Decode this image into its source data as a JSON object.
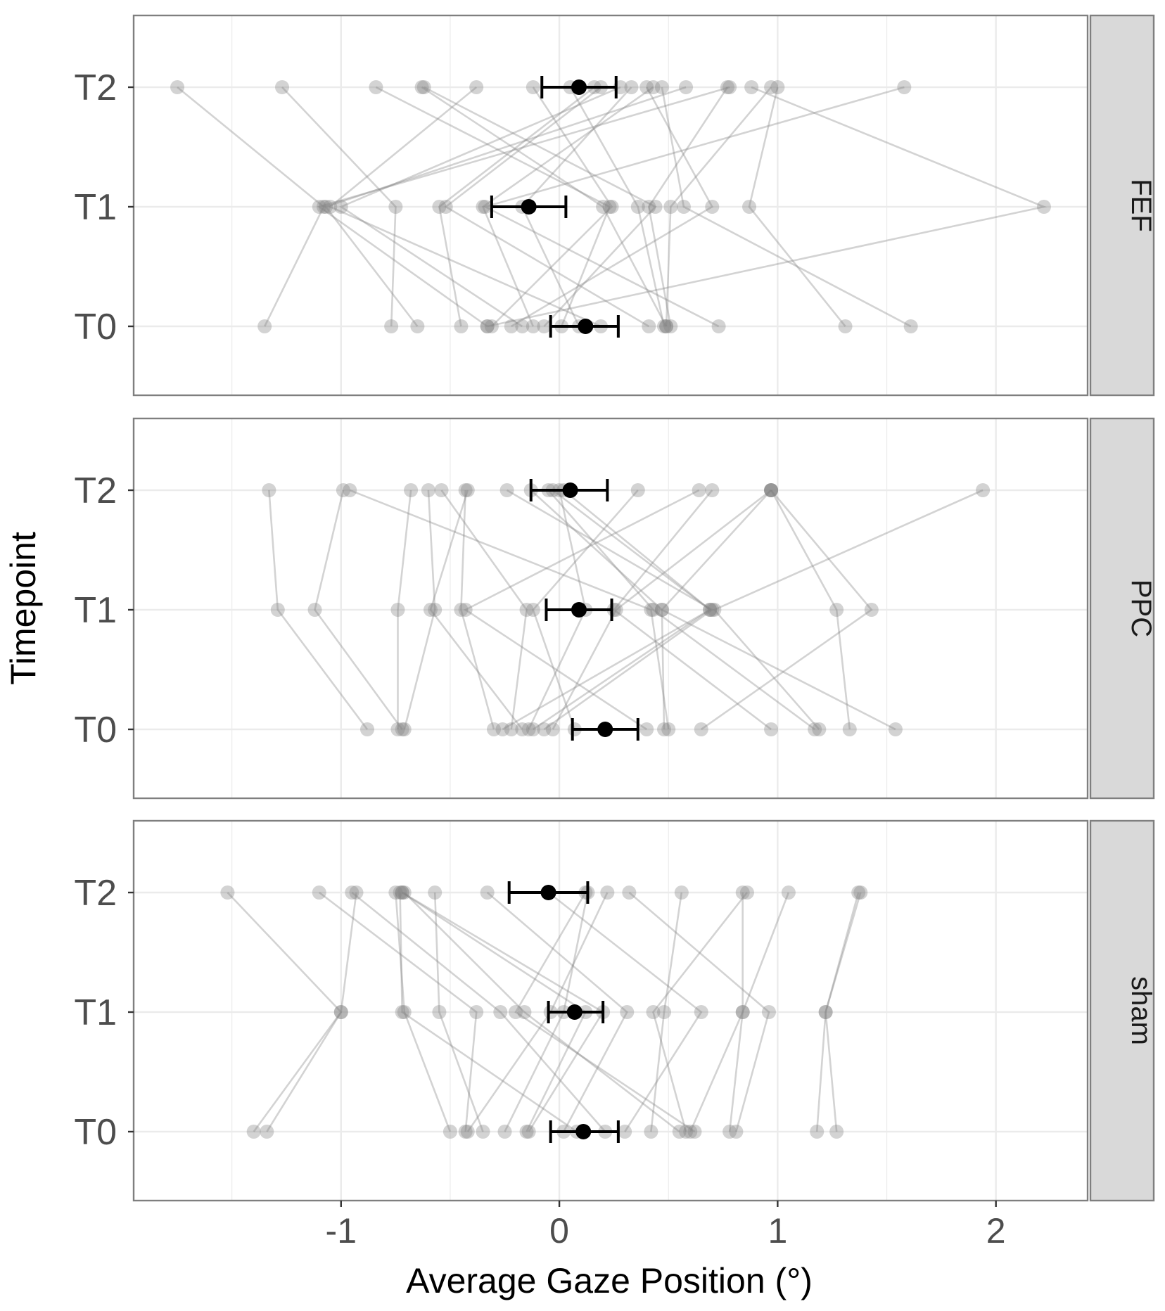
{
  "chart_data": {
    "type": "scatter",
    "title": "",
    "xlabel": "Average Gaze Position (°)",
    "ylabel": "Timepoint",
    "xlim": [
      -1.95,
      2.42
    ],
    "x_ticks": [
      -1,
      0,
      1,
      2
    ],
    "x_tick_labels": [
      "-1",
      "0",
      "1",
      "2"
    ],
    "categories": [
      "T0",
      "T1",
      "T2"
    ],
    "grid": true,
    "colors": {
      "points": "#808080",
      "mean": "#000000",
      "grid": "#ebebeb",
      "strip": "#d9d9d9"
    },
    "panels": [
      {
        "label": "FEF",
        "subjects": [
          [
            -1.35,
            -1.08,
            -1.75
          ],
          [
            -0.77,
            -0.75,
            -1.27
          ],
          [
            0.49,
            0.51,
            0.97
          ],
          [
            1.31,
            0.87,
            1.0
          ],
          [
            -0.33,
            -1.1,
            0.78
          ],
          [
            0.49,
            0.2,
            -0.63
          ],
          [
            1.61,
            0.57,
            0.47
          ],
          [
            0.19,
            -1.05,
            -0.38
          ],
          [
            0.73,
            -0.34,
            1.58
          ],
          [
            -0.31,
            0.24,
            -0.12
          ],
          [
            0.51,
            0.41,
            0.77
          ],
          [
            -0.33,
            2.22,
            0.88
          ],
          [
            -0.65,
            -1.07,
            0.58
          ],
          [
            -0.45,
            -0.55,
            0.16
          ],
          [
            0.41,
            -0.52,
            0.19
          ],
          [
            -0.12,
            -0.35,
            0.43
          ],
          [
            -0.07,
            0.44,
            -0.62
          ],
          [
            0.09,
            -0.17,
            0.33
          ],
          [
            0.48,
            0.36,
            0.05
          ],
          [
            -0.17,
            -1.0,
            0.28
          ],
          [
            0.01,
            0.23,
            -0.84
          ],
          [
            -0.22,
            0.7,
            0.4
          ]
        ],
        "mean": [
          0.12,
          -0.14,
          0.09
        ],
        "ci_low": [
          -0.04,
          -0.31,
          -0.08
        ],
        "ci_high": [
          0.27,
          0.03,
          0.26
        ]
      },
      {
        "label": "PPC",
        "subjects": [
          [
            -0.88,
            -1.29,
            -1.33
          ],
          [
            -0.72,
            -1.12,
            -0.99
          ],
          [
            1.19,
            0.71,
            1.94
          ],
          [
            -0.71,
            -0.57,
            -0.6
          ],
          [
            -0.3,
            -0.45,
            -0.43
          ],
          [
            0.5,
            0.42,
            -0.96
          ],
          [
            1.33,
            1.27,
            0.97
          ],
          [
            -0.22,
            -0.15,
            -0.54
          ],
          [
            0.65,
            1.43,
            0.97
          ],
          [
            -0.07,
            0.7,
            -0.24
          ],
          [
            1.54,
            0.47,
            0.97
          ],
          [
            -0.74,
            -0.74,
            -0.68
          ],
          [
            0.07,
            -0.12,
            0.36
          ],
          [
            0.97,
            0.25,
            0.7
          ],
          [
            0.4,
            -0.43,
            0.64
          ],
          [
            -0.12,
            0.69,
            -0.03
          ],
          [
            -0.17,
            -0.59,
            -0.42
          ],
          [
            0.48,
            0.47,
            -0.13
          ],
          [
            -0.03,
            0.26,
            0.97
          ],
          [
            1.17,
            0.43,
            -0.05
          ],
          [
            -0.26,
            0.69,
            0.02
          ],
          [
            -0.14,
            0.12,
            0.0
          ]
        ],
        "mean": [
          0.21,
          0.09,
          0.05
        ],
        "ci_low": [
          0.06,
          -0.06,
          -0.13
        ],
        "ci_high": [
          0.36,
          0.24,
          0.22
        ]
      },
      {
        "label": "sham",
        "subjects": [
          [
            -1.4,
            -1.0,
            -1.52
          ],
          [
            -1.34,
            -1.0,
            -0.93
          ],
          [
            -0.5,
            -0.71,
            -0.75
          ],
          [
            0.55,
            -0.16,
            -0.71
          ],
          [
            0.58,
            0.43,
            0.86
          ],
          [
            0.6,
            0.84,
            0.84
          ],
          [
            0.78,
            0.84,
            1.05
          ],
          [
            1.18,
            1.22,
            1.37
          ],
          [
            1.27,
            1.22,
            1.38
          ],
          [
            -0.15,
            0.12,
            -0.72
          ],
          [
            -0.35,
            -0.55,
            -0.57
          ],
          [
            -0.43,
            -0.38,
            -1.1
          ],
          [
            0.02,
            0.31,
            -0.33
          ],
          [
            0.3,
            0.65,
            -0.05
          ],
          [
            -0.25,
            0.02,
            0.13
          ],
          [
            0.42,
            0.48,
            0.56
          ],
          [
            0.21,
            -0.27,
            -0.95
          ],
          [
            0.81,
            0.96,
            0.32
          ],
          [
            -0.42,
            -0.04,
            0.22
          ],
          [
            0.62,
            -0.2,
            0.12
          ],
          [
            0.08,
            -0.72,
            -0.73
          ],
          [
            -0.14,
            0.2,
            -0.72
          ]
        ],
        "mean": [
          0.11,
          0.07,
          -0.05
        ],
        "ci_low": [
          -0.04,
          -0.05,
          -0.23
        ],
        "ci_high": [
          0.27,
          0.2,
          0.13
        ]
      }
    ]
  }
}
